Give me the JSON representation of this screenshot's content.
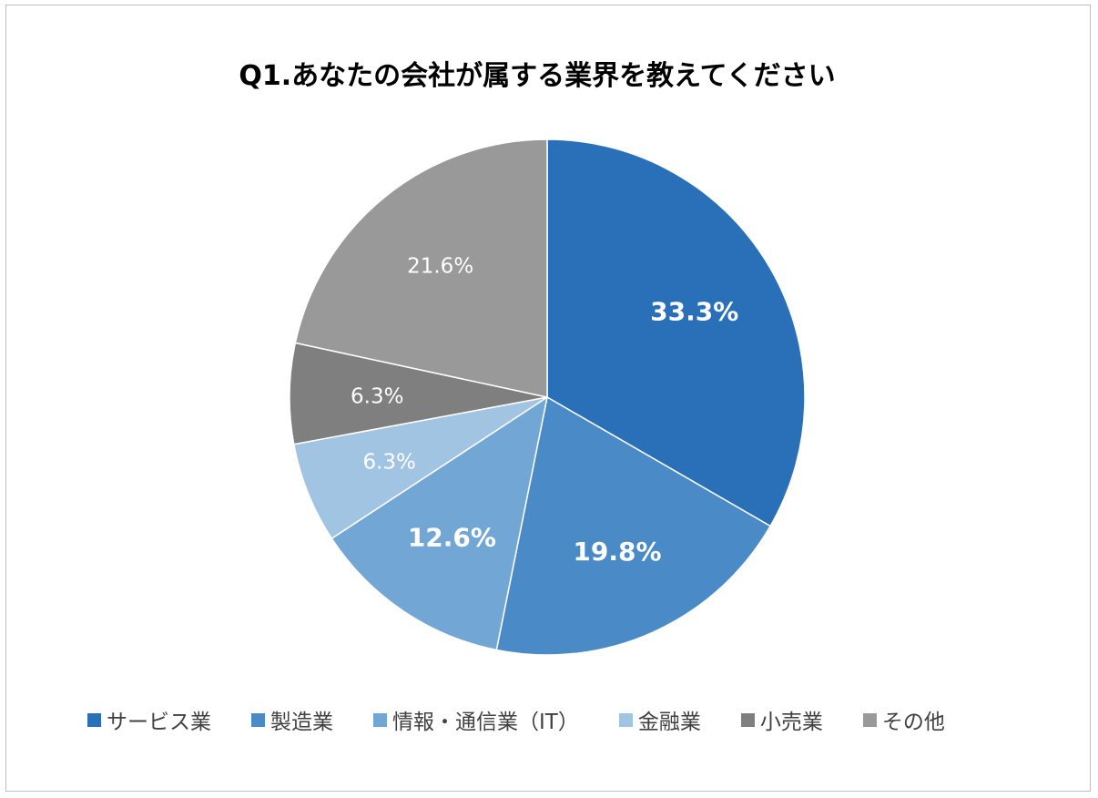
{
  "chart_data": {
    "type": "pie",
    "title": "Q1.あなたの会社が属する業界を教えてください",
    "categories": [
      "サービス業",
      "製造業",
      "情報・通信業（IT）",
      "金融業",
      "小売業",
      "その他"
    ],
    "values": [
      33.3,
      19.8,
      12.6,
      6.3,
      6.3,
      21.6
    ],
    "labels": [
      "33.3%",
      "19.8%",
      "12.6%",
      "6.3%",
      "6.3%",
      "21.6%"
    ],
    "colors": [
      "#2970B9",
      "#4A8AC7",
      "#72A6D5",
      "#A2C4E3",
      "#7F7F7F",
      "#999999"
    ],
    "legend": "bottom"
  }
}
